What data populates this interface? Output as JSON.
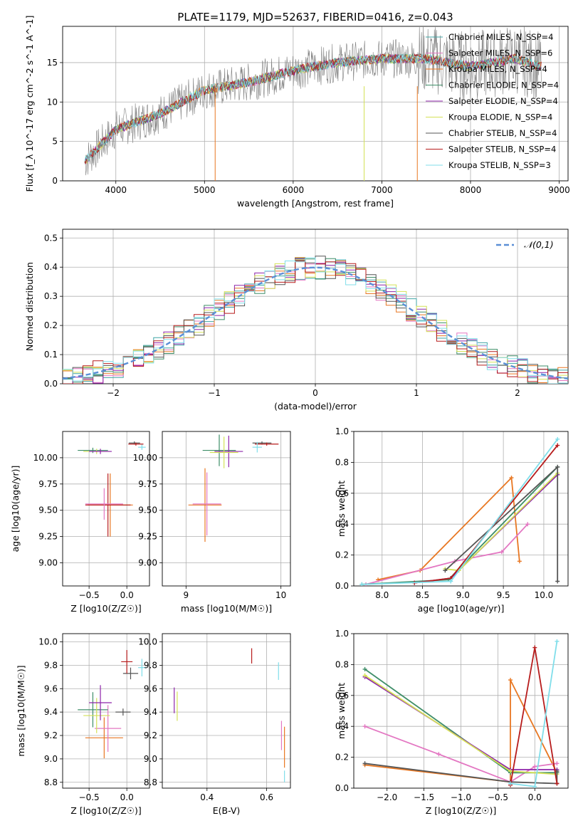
{
  "title": "PLATE=1179, MJD=52637, FIBERID=0416, z=0.043",
  "chart_data": [
    {
      "type": "line",
      "id": "spectrum",
      "xlabel": "wavelength [Angstrom, rest frame]",
      "ylabel": "Flux [f_λ 10^-17 erg cm^-2 s^-1 A^-1]",
      "xlim": [
        3400,
        9100
      ],
      "ylim": [
        0,
        19.6
      ],
      "xticks": [
        4000,
        5000,
        6000,
        7000,
        8000,
        9000
      ],
      "yticks": [
        0,
        5,
        10,
        15
      ],
      "legend_position": "top-right",
      "data_shape": {
        "x": [
          3650,
          4000,
          4500,
          5000,
          5500,
          6000,
          6500,
          7000,
          7500,
          8000,
          8500,
          8800
        ],
        "y": [
          2.5,
          6.5,
          8.5,
          11.5,
          12.5,
          14.0,
          15.0,
          15.5,
          15.5,
          14.5,
          15.5,
          14.5
        ]
      },
      "series": [
        {
          "name": "Chabrier MILES, N_SSP=4",
          "color": "#41a5a5"
        },
        {
          "name": "Salpeter MILES, N_SSP=6",
          "color": "#e377c2"
        },
        {
          "name": "Kroupa MILES, N_SSP=4",
          "color": "#e87722"
        },
        {
          "name": "Chabrier ELODIE, N_SSP=4",
          "color": "#3e8e68"
        },
        {
          "name": "Salpeter ELODIE, N_SSP=4",
          "color": "#8e24aa"
        },
        {
          "name": "Kroupa ELODIE, N_SSP=4",
          "color": "#d4e157"
        },
        {
          "name": "Chabrier STELIB, N_SSP=4",
          "color": "#555555"
        },
        {
          "name": "Salpeter STELIB, N_SSP=4",
          "color": "#b71c1c"
        },
        {
          "name": "Kroupa STELIB, N_SSP=3",
          "color": "#80deea"
        }
      ]
    },
    {
      "type": "histogram",
      "id": "residuals",
      "xlabel": "(data-model)/error",
      "ylabel": "Normed distribution",
      "xlim": [
        -2.5,
        2.5
      ],
      "ylim": [
        0,
        0.53
      ],
      "xticks": [
        -2,
        -1,
        0,
        1,
        2
      ],
      "yticks": [
        0.0,
        0.1,
        0.2,
        0.3,
        0.4,
        0.5
      ],
      "legend": "𝒩(0,1)",
      "legend_position": "top-right",
      "reference_curve": "normal(0,1)",
      "bin_width": 0.1,
      "envelope": [
        0.02,
        0.03,
        0.04,
        0.05,
        0.07,
        0.1,
        0.13,
        0.18,
        0.23,
        0.3,
        0.36,
        0.42,
        0.45,
        0.42,
        0.36,
        0.3,
        0.24,
        0.19,
        0.14,
        0.1,
        0.07,
        0.05,
        0.04,
        0.03
      ]
    },
    {
      "type": "scatter",
      "id": "age-vs-Z",
      "xlabel": "Z [log10(Z/Z☉)]",
      "ylabel": "age [log10(age/yr)]",
      "xlim": [
        -0.85,
        0.3
      ],
      "ylim": [
        8.78,
        10.25
      ],
      "xticks": [
        -0.5,
        0.0
      ],
      "yticks": [
        9.0,
        9.25,
        9.5,
        9.75,
        10.0
      ],
      "points": [
        {
          "x": -0.22,
          "y": 9.55,
          "xerr": 0.6,
          "yerr": 0.6,
          "c": "#e87722"
        },
        {
          "x": -0.25,
          "y": 9.55,
          "xerr": 0.6,
          "yerr": 0.6,
          "c": "#b71c1c"
        },
        {
          "x": -0.3,
          "y": 9.56,
          "xerr": 0.5,
          "yerr": 0.3,
          "c": "#e377c2"
        },
        {
          "x": -0.45,
          "y": 10.07,
          "xerr": 0.4,
          "yerr": 0.05,
          "c": "#3e8e68"
        },
        {
          "x": -0.4,
          "y": 10.06,
          "xerr": 0.35,
          "yerr": 0.05,
          "c": "#d4e157"
        },
        {
          "x": -0.35,
          "y": 10.06,
          "xerr": 0.3,
          "yerr": 0.05,
          "c": "#8e24aa"
        },
        {
          "x": 0.1,
          "y": 10.14,
          "xerr": 0.15,
          "yerr": 0.03,
          "c": "#555555"
        },
        {
          "x": 0.12,
          "y": 10.13,
          "xerr": 0.2,
          "yerr": 0.03,
          "c": "#b71c1c"
        },
        {
          "x": 0.2,
          "y": 10.1,
          "xerr": 0.1,
          "yerr": 0.05,
          "c": "#80deea"
        }
      ]
    },
    {
      "type": "scatter",
      "id": "age-vs-mass",
      "xlabel": "mass [log10(M/M☉)]",
      "ylabel": "",
      "xlim": [
        8.75,
        10.1
      ],
      "ylim": [
        8.78,
        10.25
      ],
      "xticks": [
        9,
        10
      ],
      "yticks": [
        9.0,
        9.25,
        9.5,
        9.75,
        10.0
      ],
      "points": [
        {
          "x": 9.2,
          "y": 9.55,
          "xerr": 0.35,
          "yerr": 0.7,
          "c": "#e87722"
        },
        {
          "x": 9.22,
          "y": 9.56,
          "xerr": 0.3,
          "yerr": 0.6,
          "c": "#e377c2"
        },
        {
          "x": 9.35,
          "y": 10.07,
          "xerr": 0.35,
          "yerr": 0.3,
          "c": "#3e8e68"
        },
        {
          "x": 9.45,
          "y": 10.06,
          "xerr": 0.3,
          "yerr": 0.3,
          "c": "#8e24aa"
        },
        {
          "x": 9.4,
          "y": 10.05,
          "xerr": 0.3,
          "yerr": 0.3,
          "c": "#d4e157"
        },
        {
          "x": 9.8,
          "y": 10.14,
          "xerr": 0.2,
          "yerr": 0.03,
          "c": "#555555"
        },
        {
          "x": 9.85,
          "y": 10.13,
          "xerr": 0.25,
          "yerr": 0.03,
          "c": "#b71c1c"
        },
        {
          "x": 9.75,
          "y": 10.1,
          "xerr": 0.1,
          "yerr": 0.1,
          "c": "#80deea"
        }
      ]
    },
    {
      "type": "line",
      "id": "massweight-vs-age",
      "xlabel": "age [log10(age/yr)]",
      "ylabel": "mass weight",
      "xlim": [
        7.65,
        10.3
      ],
      "ylim": [
        0,
        1.0
      ],
      "xticks": [
        8.0,
        8.5,
        9.0,
        9.5,
        10.0
      ],
      "yticks": [
        0.0,
        0.2,
        0.4,
        0.6,
        0.8,
        1.0
      ],
      "series": [
        {
          "c": "#e87722",
          "x": [
            7.95,
            8.47,
            9.6,
            9.7
          ],
          "y": [
            0.04,
            0.1,
            0.7,
            0.16
          ]
        },
        {
          "c": "#e377c2",
          "x": [
            7.8,
            8.9,
            9.48,
            9.8
          ],
          "y": [
            0.01,
            0.16,
            0.22,
            0.4
          ]
        },
        {
          "c": "#3e8e68",
          "x": [
            7.75,
            8.82,
            10.17
          ],
          "y": [
            0.01,
            0.04,
            0.77
          ]
        },
        {
          "c": "#8e24aa",
          "x": [
            8.4,
            8.85,
            10.17
          ],
          "y": [
            0.02,
            0.05,
            0.72
          ]
        },
        {
          "c": "#d4e157",
          "x": [
            8.78,
            8.95,
            10.17
          ],
          "y": [
            0.11,
            0.1,
            0.73
          ]
        },
        {
          "c": "#555555",
          "x": [
            8.78,
            10.17,
            10.17
          ],
          "y": [
            0.1,
            0.77,
            0.03
          ]
        },
        {
          "c": "#b71c1c",
          "x": [
            8.4,
            8.85,
            10.17
          ],
          "y": [
            0.02,
            0.05,
            0.91
          ]
        },
        {
          "c": "#80deea",
          "x": [
            7.75,
            8.85,
            10.17
          ],
          "y": [
            0.01,
            0.03,
            0.95
          ]
        }
      ]
    },
    {
      "type": "scatter",
      "id": "mass-vs-Z",
      "xlabel": "Z [log10(Z/Z☉)]",
      "ylabel": "mass [log10(M/M☉)]",
      "xlim": [
        -0.85,
        0.3
      ],
      "ylim": [
        8.75,
        10.07
      ],
      "xticks": [
        -0.5,
        0.0
      ],
      "yticks": [
        8.8,
        9.0,
        9.2,
        9.4,
        9.6,
        9.8,
        10.0
      ],
      "points": [
        {
          "x": -0.3,
          "y": 9.18,
          "xerr": 0.5,
          "yerr": 0.35,
          "c": "#e87722"
        },
        {
          "x": -0.25,
          "y": 9.26,
          "xerr": 0.35,
          "yerr": 0.4,
          "c": "#e377c2"
        },
        {
          "x": -0.45,
          "y": 9.42,
          "xerr": 0.4,
          "yerr": 0.3,
          "c": "#3e8e68"
        },
        {
          "x": -0.4,
          "y": 9.37,
          "xerr": 0.35,
          "yerr": 0.3,
          "c": "#d4e157"
        },
        {
          "x": -0.35,
          "y": 9.48,
          "xerr": 0.3,
          "yerr": 0.3,
          "c": "#8e24aa"
        },
        {
          "x": -0.05,
          "y": 9.4,
          "xerr": 0.2,
          "yerr": 0.06,
          "c": "#555555"
        },
        {
          "x": 0.05,
          "y": 9.73,
          "xerr": 0.2,
          "yerr": 0.1,
          "c": "#555555"
        },
        {
          "x": 0.0,
          "y": 9.83,
          "xerr": 0.15,
          "yerr": 0.2,
          "c": "#b71c1c"
        },
        {
          "x": 0.2,
          "y": 9.78,
          "xerr": 0.1,
          "yerr": 0.15,
          "c": "#80deea"
        }
      ]
    },
    {
      "type": "scatter",
      "id": "mass-vs-EBV",
      "xlabel": "E(B-V)",
      "ylabel": "",
      "xlim": [
        0.25,
        0.68
      ],
      "ylim": [
        8.75,
        10.07
      ],
      "xticks": [
        0.4,
        0.6
      ],
      "yticks": [
        8.8,
        9.0,
        9.2,
        9.4,
        9.6,
        9.8,
        10.0
      ],
      "points": [
        {
          "x": 0.55,
          "y": 9.88,
          "yerr": 0.13,
          "c": "#b71c1c"
        },
        {
          "x": 0.64,
          "y": 9.75,
          "yerr": 0.15,
          "c": "#80deea"
        },
        {
          "x": 0.65,
          "y": 9.2,
          "yerr": 0.25,
          "c": "#e377c2"
        },
        {
          "x": 0.66,
          "y": 9.1,
          "yerr": 0.35,
          "c": "#e87722"
        },
        {
          "x": 0.29,
          "y": 9.5,
          "yerr": 0.22,
          "c": "#8e24aa"
        },
        {
          "x": 0.3,
          "y": 9.45,
          "yerr": 0.25,
          "c": "#d4e157"
        },
        {
          "x": 0.66,
          "y": 8.85,
          "yerr": 0.1,
          "c": "#80deea"
        }
      ]
    },
    {
      "type": "line",
      "id": "massweight-vs-Z",
      "xlabel": "Z [log10(Z/Z☉)]",
      "ylabel": "mass weight",
      "xlim": [
        -2.45,
        0.45
      ],
      "ylim": [
        0,
        1.0
      ],
      "xticks": [
        -2.0,
        -1.5,
        -1.0,
        -0.5,
        0.0
      ],
      "yticks": [
        0.0,
        0.2,
        0.4,
        0.6,
        0.8,
        1.0
      ],
      "series": [
        {
          "c": "#e87722",
          "x": [
            -2.3,
            -0.33,
            -0.33,
            0.3
          ],
          "y": [
            0.15,
            0.04,
            0.7,
            0.1
          ]
        },
        {
          "c": "#e377c2",
          "x": [
            -2.3,
            -1.3,
            -0.33,
            0.0,
            0.3
          ],
          "y": [
            0.4,
            0.22,
            0.04,
            0.14,
            0.16
          ]
        },
        {
          "c": "#3e8e68",
          "x": [
            -2.3,
            -0.33,
            0.3
          ],
          "y": [
            0.77,
            0.1,
            0.1
          ]
        },
        {
          "c": "#8e24aa",
          "x": [
            -2.3,
            -0.33,
            0.3
          ],
          "y": [
            0.72,
            0.12,
            0.12
          ]
        },
        {
          "c": "#d4e157",
          "x": [
            -2.3,
            -0.33,
            0.3
          ],
          "y": [
            0.73,
            0.11,
            0.09
          ]
        },
        {
          "c": "#555555",
          "x": [
            -2.3,
            -0.33,
            0.3,
            0.3
          ],
          "y": [
            0.16,
            0.04,
            0.03,
            0.11
          ]
        },
        {
          "c": "#b71c1c",
          "x": [
            -0.33,
            0.0,
            0.3
          ],
          "y": [
            0.02,
            0.91,
            0.03
          ]
        },
        {
          "c": "#80deea",
          "x": [
            -0.33,
            0.0,
            0.3
          ],
          "y": [
            0.03,
            0.01,
            0.95
          ]
        }
      ]
    }
  ]
}
